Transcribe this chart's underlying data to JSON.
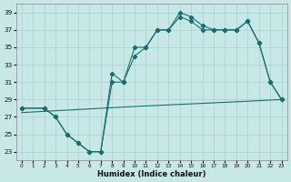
{
  "bg_color": "#c8e8e8",
  "grid_color": "#a8d0d0",
  "line_color": "#1a6e6e",
  "xlabel": "Humidex (Indice chaleur)",
  "xmin": -0.5,
  "xmax": 23.5,
  "ymin": 22,
  "ymax": 40,
  "yticks": [
    23,
    25,
    27,
    29,
    31,
    33,
    35,
    37,
    39
  ],
  "xticks": [
    0,
    1,
    2,
    3,
    4,
    5,
    6,
    7,
    8,
    9,
    10,
    11,
    12,
    13,
    14,
    15,
    16,
    17,
    18,
    19,
    20,
    21,
    22,
    23
  ],
  "curve1_x": [
    0,
    2,
    3,
    4,
    5,
    6,
    7,
    8,
    9,
    10,
    11,
    12,
    13,
    14,
    15,
    16,
    17,
    18,
    19,
    20,
    21,
    22,
    23
  ],
  "curve1_y": [
    28,
    28,
    27,
    25,
    24,
    23,
    23,
    32,
    31,
    35,
    35,
    37,
    37,
    39,
    38.5,
    37.5,
    37,
    37,
    37,
    38,
    35.5,
    31,
    29
  ],
  "curve2_x": [
    0,
    2,
    3,
    4,
    5,
    6,
    7,
    8,
    9,
    10,
    11,
    12,
    13,
    14,
    15,
    16,
    17,
    18,
    19,
    20,
    21,
    22,
    23
  ],
  "curve2_y": [
    28,
    28,
    27,
    25,
    24,
    23,
    23,
    31,
    31,
    34,
    35,
    37,
    37,
    38.5,
    38,
    37,
    37,
    37,
    37,
    38,
    35.5,
    31,
    29
  ],
  "curve3_x": [
    0,
    10,
    15,
    20,
    23
  ],
  "curve3_y": [
    27.5,
    28.2,
    28.5,
    28.8,
    29
  ]
}
